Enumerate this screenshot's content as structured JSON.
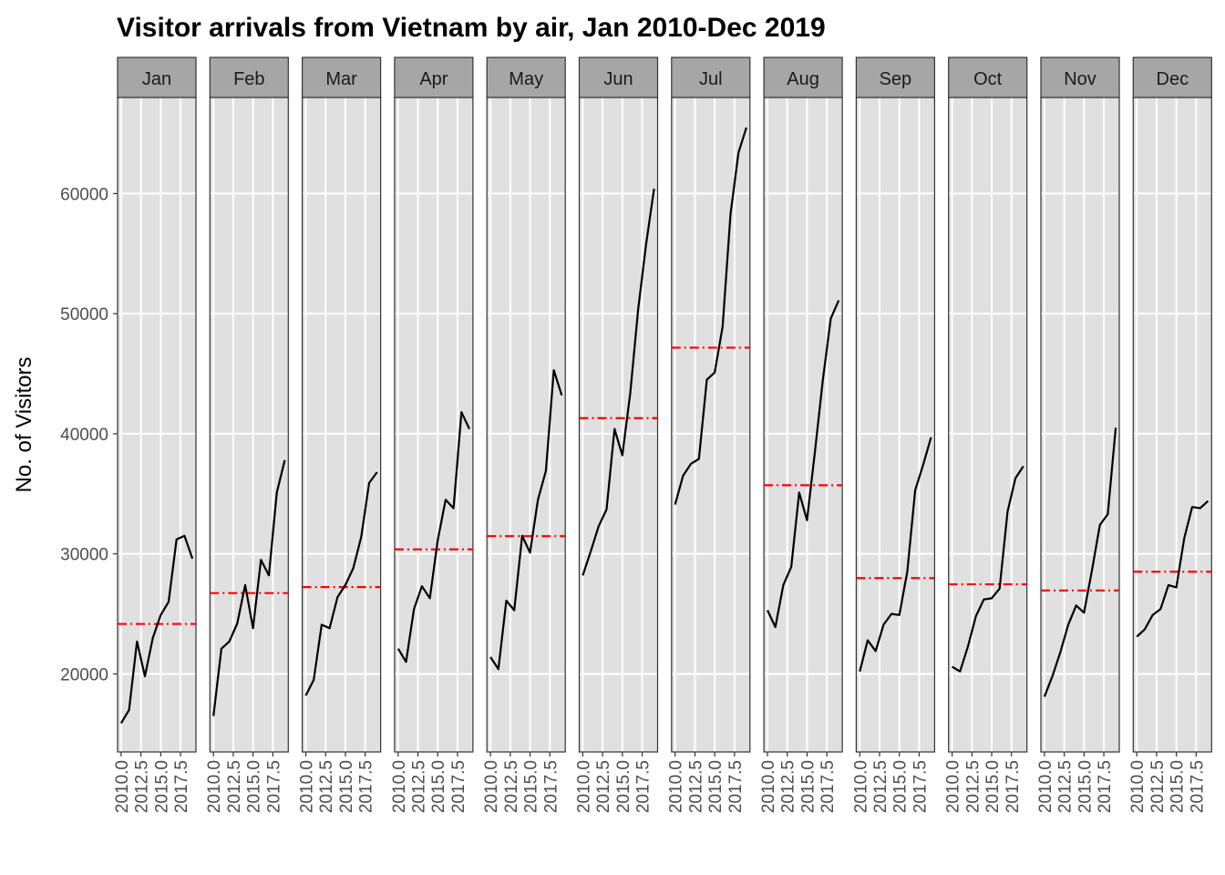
{
  "chart_data": {
    "type": "line",
    "title": "Visitor arrivals from Vietnam by air, Jan 2010-Dec 2019",
    "xlabel": "",
    "ylabel": "No. of Visitors",
    "ylim": [
      13500,
      68000
    ],
    "yticks": [
      20000,
      30000,
      40000,
      50000,
      60000
    ],
    "xlim": [
      2009.55,
      2019.45
    ],
    "xticks": [
      2010.0,
      2012.5,
      2015.0,
      2017.5
    ],
    "xtick_labels": [
      "2010.0",
      "2012.5",
      "2015.0",
      "2017.5"
    ],
    "grid": true,
    "legend": "none",
    "x": [
      2010,
      2011,
      2012,
      2013,
      2014,
      2015,
      2016,
      2017,
      2018,
      2019
    ],
    "mean_line_style": "dashed red",
    "facets": [
      {
        "name": "Jan",
        "values": [
          15900,
          17000,
          22700,
          19800,
          23000,
          24900,
          26000,
          31200,
          31500,
          29600
        ],
        "mean": 24160
      },
      {
        "name": "Feb",
        "values": [
          16500,
          22100,
          22700,
          24200,
          27400,
          23800,
          29500,
          28200,
          35100,
          37800
        ],
        "mean": 26730
      },
      {
        "name": "Mar",
        "values": [
          18200,
          19500,
          24100,
          23800,
          26400,
          27400,
          28800,
          31400,
          35900,
          36800
        ],
        "mean": 27230
      },
      {
        "name": "Apr",
        "values": [
          22100,
          21000,
          25400,
          27300,
          26300,
          31100,
          34500,
          33800,
          41800,
          40400
        ],
        "mean": 30370
      },
      {
        "name": "May",
        "values": [
          21400,
          20400,
          26100,
          25300,
          31500,
          30100,
          34500,
          36900,
          45300,
          43200
        ],
        "mean": 31470
      },
      {
        "name": "Jun",
        "values": [
          28200,
          30200,
          32300,
          33700,
          40400,
          38200,
          43400,
          50400,
          55800,
          60400
        ],
        "mean": 41300
      },
      {
        "name": "Jul",
        "values": [
          34100,
          36500,
          37500,
          37900,
          44500,
          45100,
          48900,
          58300,
          63400,
          65500
        ],
        "mean": 47170
      },
      {
        "name": "Aug",
        "values": [
          25300,
          23900,
          27400,
          28900,
          35100,
          32800,
          38500,
          44500,
          49600,
          51100
        ],
        "mean": 35710
      },
      {
        "name": "Sep",
        "values": [
          20200,
          22800,
          21900,
          24100,
          25000,
          24900,
          28500,
          35300,
          37400,
          39700
        ],
        "mean": 27980
      },
      {
        "name": "Oct",
        "values": [
          20600,
          20200,
          22300,
          24800,
          26200,
          26300,
          27100,
          33500,
          36300,
          37300
        ],
        "mean": 27460
      },
      {
        "name": "Nov",
        "values": [
          18100,
          19800,
          21800,
          24100,
          25700,
          25100,
          28600,
          32400,
          33300,
          40500
        ],
        "mean": 26950
      },
      {
        "name": "Dec",
        "values": [
          23100,
          23700,
          24900,
          25400,
          27400,
          27200,
          31300,
          33900,
          33800,
          34400
        ],
        "mean": 28510
      }
    ]
  }
}
